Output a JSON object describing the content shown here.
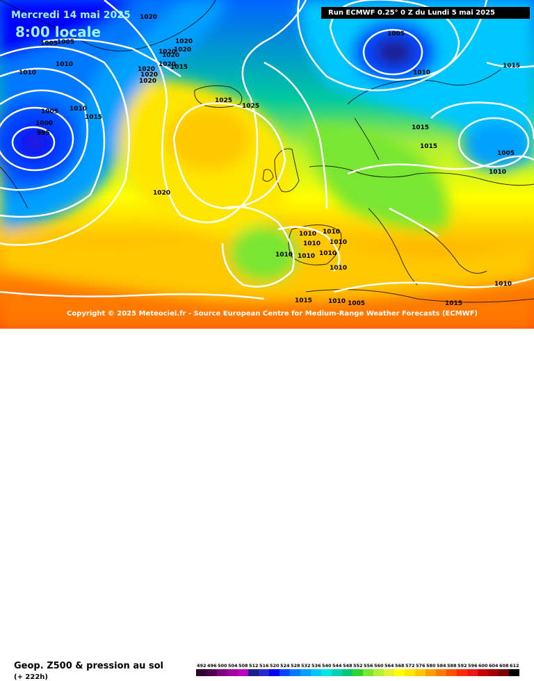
{
  "header": {
    "date": "Mercredi 14 mai 2025",
    "time": "8:00 locale",
    "run": "Run ECMWF 0.25° 0 Z du Lundi 5 mai 2025"
  },
  "copyright": "Copyright © 2025 Meteociel.fr - Source European Centre for Medium-Range Weather Forecasts (ECMWF)",
  "footer": {
    "product": "Geop. Z500 & pression au sol",
    "forecast_hour": "(+ 222h)"
  },
  "scale": {
    "labels": [
      "492",
      "496",
      "500",
      "504",
      "508",
      "512",
      "516",
      "520",
      "524",
      "528",
      "532",
      "536",
      "540",
      "544",
      "548",
      "552",
      "556",
      "560",
      "564",
      "568",
      "572",
      "576",
      "580",
      "584",
      "588",
      "592",
      "596",
      "600",
      "604",
      "608",
      "612"
    ],
    "colors": [
      "#300030",
      "#500050",
      "#800080",
      "#a000a0",
      "#c000c0",
      "#1e1e8c",
      "#2828c8",
      "#0000ff",
      "#0046ff",
      "#0078ff",
      "#00a0ff",
      "#00c8ff",
      "#00e6e6",
      "#00d2b4",
      "#00c878",
      "#32d232",
      "#78e632",
      "#b4f032",
      "#e6f032",
      "#ffff00",
      "#ffe600",
      "#ffc800",
      "#ffa000",
      "#ff7800",
      "#ff5000",
      "#ff2800",
      "#f01414",
      "#c80000",
      "#a00000",
      "#780000",
      "#000000"
    ]
  },
  "isobars": [
    {
      "label": "1005",
      "kind": "dark"
    },
    {
      "label": "1010",
      "kind": "dark"
    },
    {
      "label": "1015",
      "kind": "dark"
    },
    {
      "label": "1020",
      "kind": "dark"
    },
    {
      "label": "1025",
      "kind": "dark"
    },
    {
      "label": "1000",
      "kind": "dark"
    },
    {
      "label": "995",
      "kind": "dark"
    }
  ]
}
